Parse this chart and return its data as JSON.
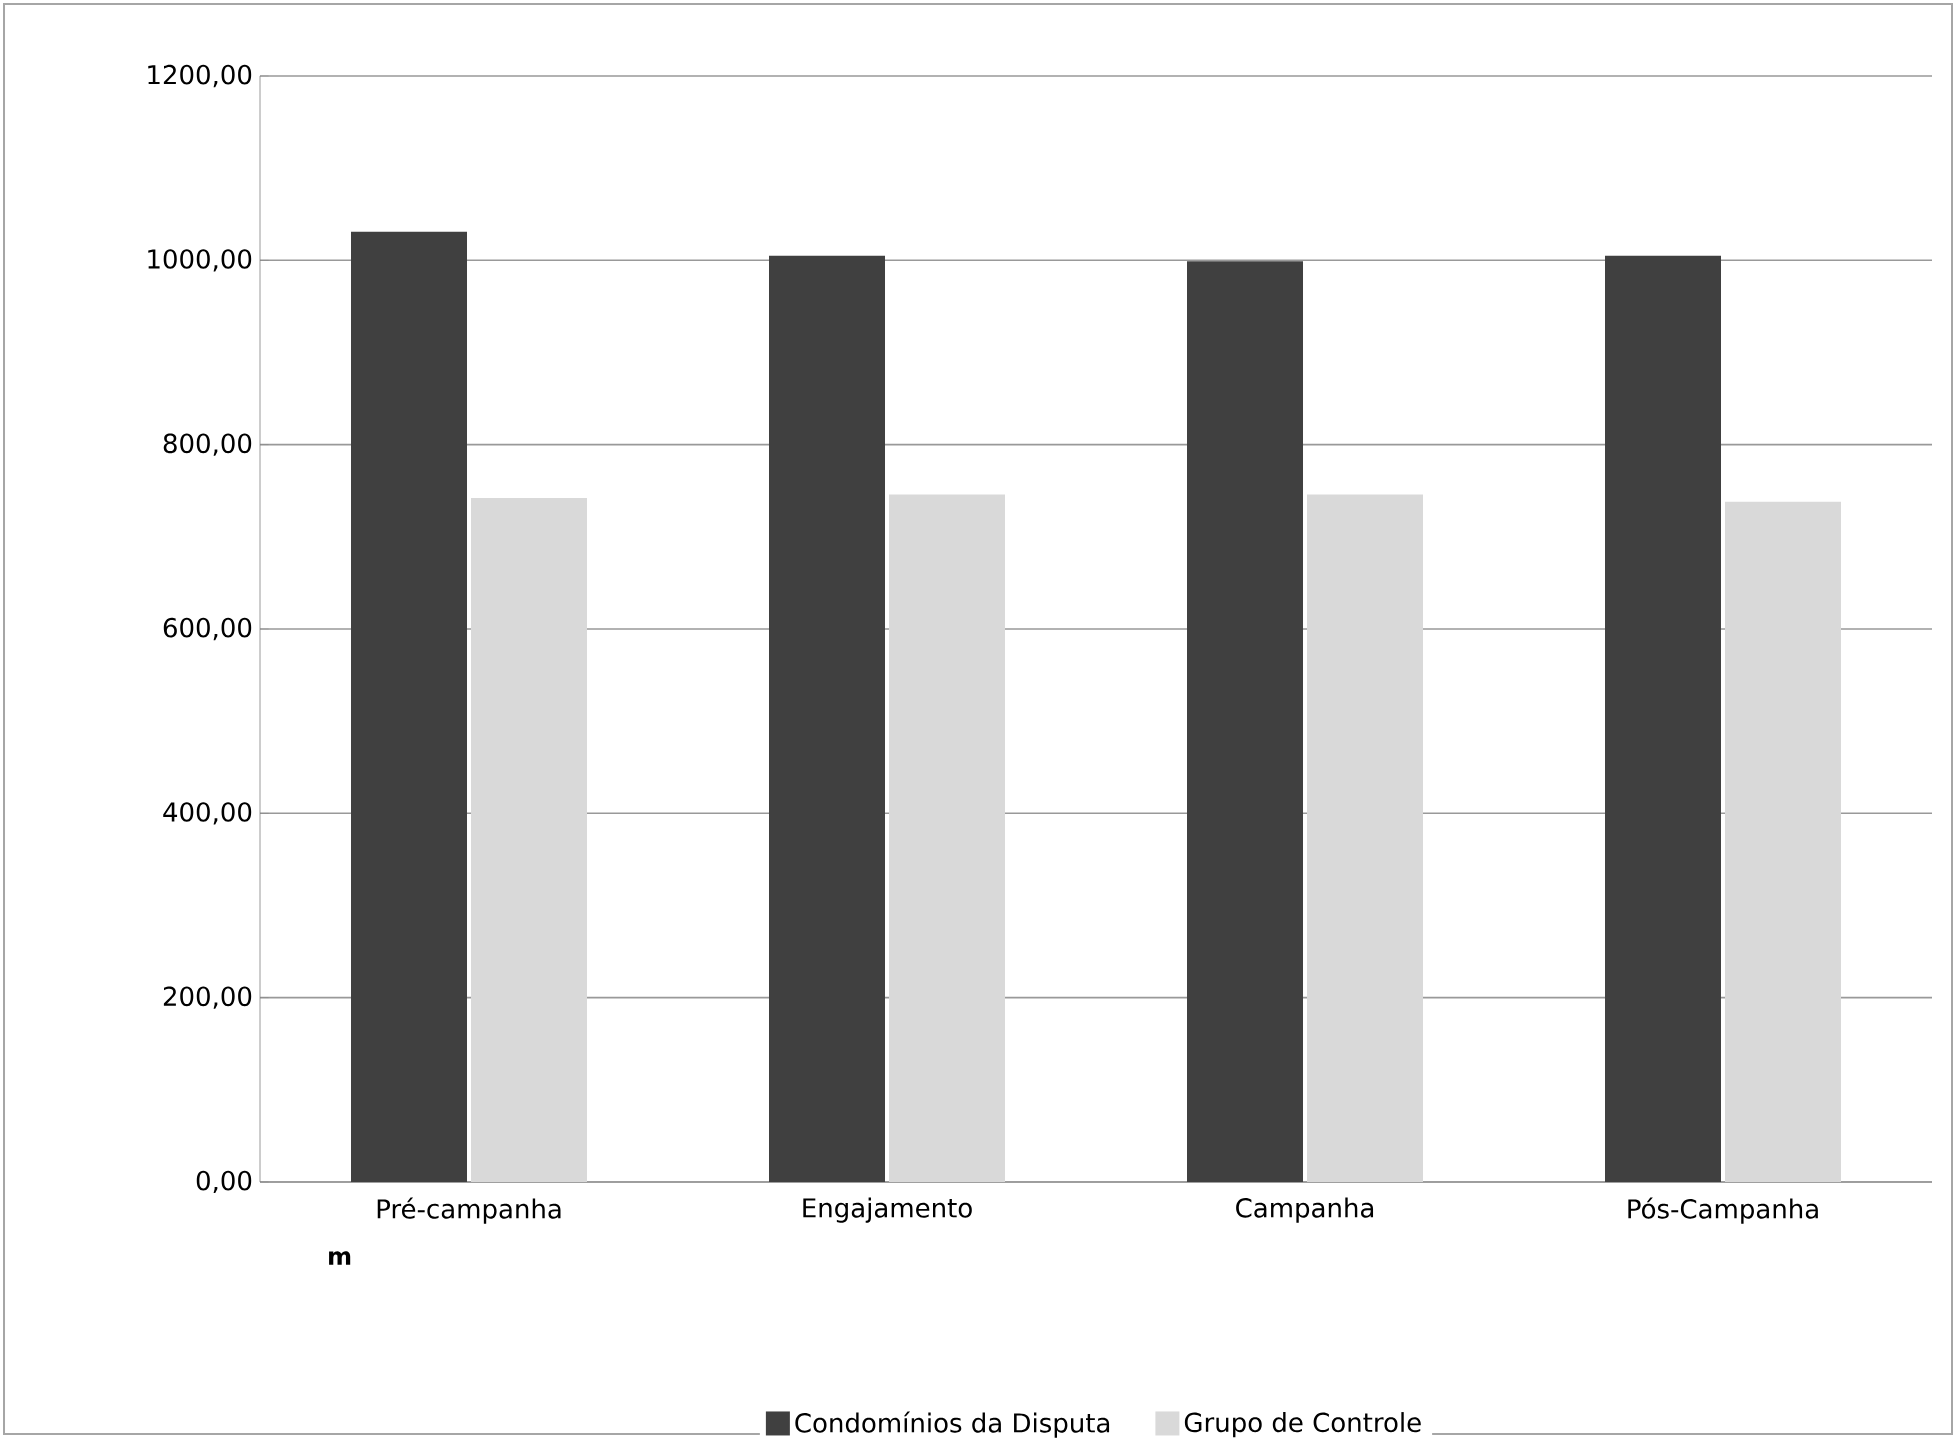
{
  "chart_data": {
    "type": "bar",
    "categories": [
      "Pré-campanha",
      "Engajamento",
      "Campanha",
      "Pós-Campanha"
    ],
    "series": [
      {
        "name": "Condomínios da Disputa",
        "color": "#404040",
        "values": [
          1031,
          1005,
          999,
          1005
        ]
      },
      {
        "name": "Grupo de Controle",
        "color": "#d9d9d9",
        "values": [
          742,
          746,
          746,
          738
        ]
      }
    ],
    "ylim": [
      0,
      1200
    ],
    "yticks": [
      {
        "value": 0,
        "label": "0,00"
      },
      {
        "value": 200,
        "label": "200,00"
      },
      {
        "value": 400,
        "label": "400,00"
      },
      {
        "value": 600,
        "label": "600,00"
      },
      {
        "value": 800,
        "label": "800,00"
      },
      {
        "value": 1000,
        "label": "1000,00"
      },
      {
        "value": 1200,
        "label": "1200,00"
      }
    ],
    "grid": "y",
    "legend": "bottom",
    "annotations": [
      "m"
    ]
  }
}
